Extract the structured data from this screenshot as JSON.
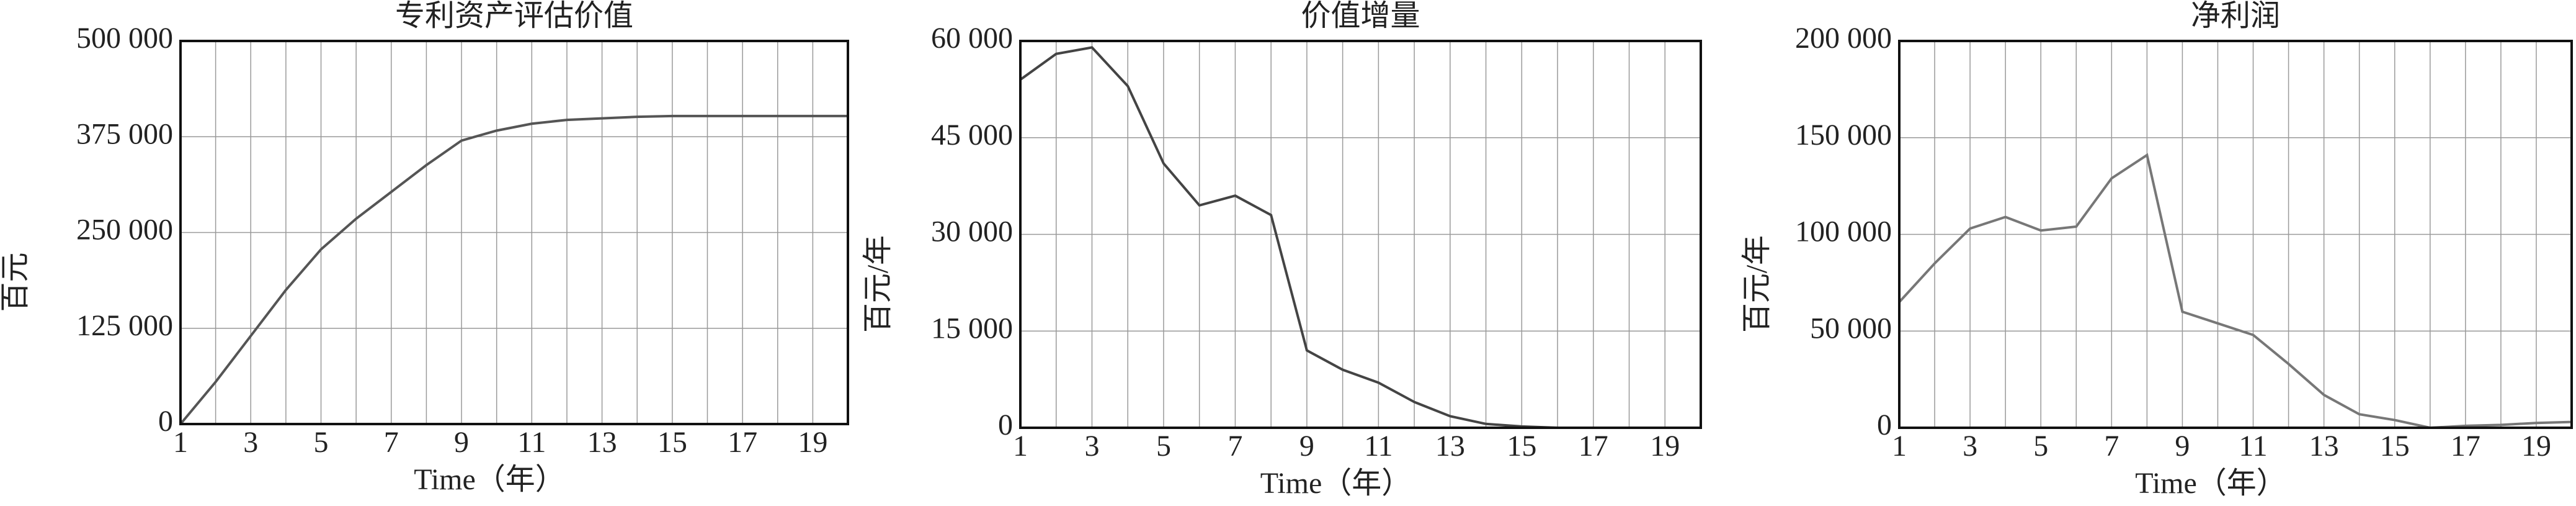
{
  "chart_data": [
    {
      "type": "line",
      "title": "专利资产评估价值",
      "x_label": "Time（年）",
      "y_label": "百元",
      "x": [
        1,
        2,
        3,
        4,
        5,
        6,
        7,
        8,
        9,
        10,
        11,
        12,
        13,
        14,
        15,
        16,
        17,
        18,
        19,
        20
      ],
      "series": [
        {
          "name": "专利资产评估价值",
          "color": "#555555",
          "values": [
            0,
            55000,
            115000,
            175000,
            228000,
            268000,
            303000,
            338000,
            370000,
            383000,
            392000,
            397000,
            399000,
            401000,
            402000,
            402000,
            402000,
            402000,
            402000,
            402000
          ]
        }
      ],
      "xlim": [
        1,
        20
      ],
      "xticks": [
        1,
        3,
        5,
        7,
        9,
        11,
        13,
        15,
        17,
        19
      ],
      "ylim": [
        0,
        500000
      ],
      "yticks": [
        0,
        {
          "value": 125000,
          "label": "125 000"
        },
        {
          "value": 250000,
          "label": "250 000"
        },
        {
          "value": 375000,
          "label": "375 000"
        },
        {
          "value": 500000,
          "label": "500 000"
        }
      ],
      "grid": true
    },
    {
      "type": "line",
      "title": "价值增量",
      "x_label": "Time（年）",
      "y_label": "百元/年",
      "x": [
        1,
        2,
        3,
        4,
        5,
        6,
        7,
        8,
        9,
        10,
        11,
        12,
        13,
        14,
        15,
        16,
        17,
        18,
        19,
        20
      ],
      "series": [
        {
          "name": "价值增量",
          "color": "#444444",
          "values": [
            54000,
            58000,
            59000,
            53000,
            41000,
            34500,
            36000,
            33000,
            12000,
            9000,
            7000,
            4000,
            1800,
            600,
            200,
            0,
            0,
            0,
            0,
            0
          ]
        }
      ],
      "xlim": [
        1,
        20
      ],
      "xticks": [
        1,
        3,
        5,
        7,
        9,
        11,
        13,
        15,
        17,
        19
      ],
      "ylim": [
        0,
        60000
      ],
      "yticks": [
        0,
        {
          "value": 15000,
          "label": "15 000"
        },
        {
          "value": 30000,
          "label": "30 000"
        },
        {
          "value": 45000,
          "label": "45 000"
        },
        {
          "value": 60000,
          "label": "60 000"
        }
      ],
      "grid": true
    },
    {
      "type": "line",
      "title": "净利润",
      "x_label": "Time（年）",
      "y_label": "百元/年",
      "x": [
        1,
        2,
        3,
        4,
        5,
        6,
        7,
        8,
        9,
        10,
        11,
        12,
        13,
        14,
        15,
        16,
        17,
        18,
        19,
        20
      ],
      "series": [
        {
          "name": "净利润",
          "color": "#777777",
          "values": [
            65000,
            85000,
            103000,
            109000,
            102000,
            104000,
            129000,
            141000,
            60000,
            54000,
            48000,
            33000,
            17000,
            7000,
            4000,
            0,
            1000,
            1500,
            2500,
            3000
          ]
        }
      ],
      "xlim": [
        1,
        20
      ],
      "xticks": [
        1,
        3,
        5,
        7,
        9,
        11,
        13,
        15,
        17,
        19
      ],
      "ylim": [
        0,
        200000
      ],
      "yticks": [
        0,
        {
          "value": 50000,
          "label": "50 000"
        },
        {
          "value": 100000,
          "label": "100 000"
        },
        {
          "value": 150000,
          "label": "150 000"
        },
        {
          "value": 200000,
          "label": "200 000"
        }
      ],
      "grid": true
    }
  ]
}
